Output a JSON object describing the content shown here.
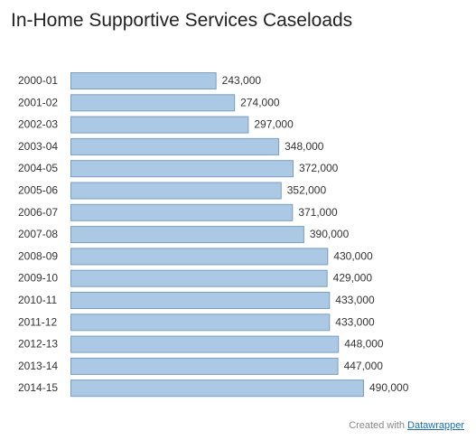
{
  "chart_data": {
    "type": "bar",
    "orientation": "horizontal",
    "title": "In-Home Supportive Services Caseloads",
    "categories": [
      "2000-01",
      "2001-02",
      "2002-03",
      "2003-04",
      "2004-05",
      "2005-06",
      "2006-07",
      "2007-08",
      "2008-09",
      "2009-10",
      "2010-11",
      "2011-12",
      "2012-13",
      "2013-14",
      "2014-15"
    ],
    "values": [
      243000,
      274000,
      297000,
      348000,
      372000,
      352000,
      371000,
      390000,
      430000,
      429000,
      433000,
      433000,
      448000,
      447000,
      490000
    ],
    "value_labels": [
      "243,000",
      "274,000",
      "297,000",
      "348,000",
      "372,000",
      "352,000",
      "371,000",
      "390,000",
      "430,000",
      "429,000",
      "433,000",
      "433,000",
      "448,000",
      "447,000",
      "490,000"
    ],
    "xlim": [
      0,
      490000
    ],
    "grid": false,
    "legend": "none",
    "bar_color": "#abc9e4"
  },
  "credit": {
    "prefix": "Created with",
    "link_text": "Datawrapper"
  }
}
